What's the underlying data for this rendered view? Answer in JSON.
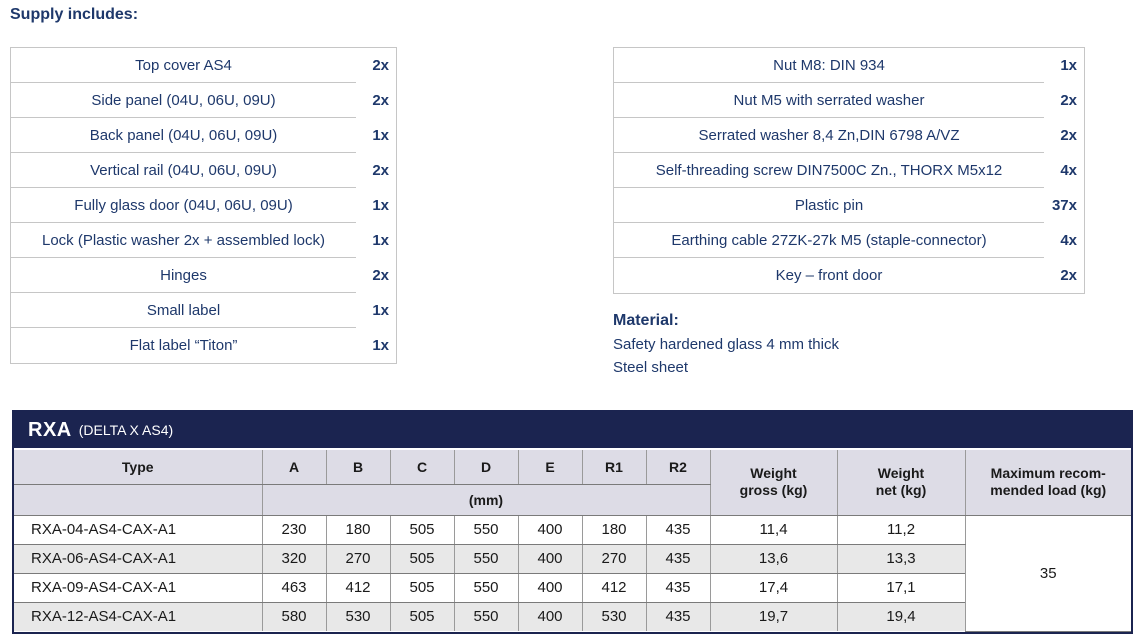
{
  "page": {
    "heading": "Supply includes:"
  },
  "supply_left": {
    "rows": [
      {
        "item": "Top cover AS4",
        "qty": "2x"
      },
      {
        "item": "Side panel (04U, 06U, 09U)",
        "qty": "2x"
      },
      {
        "item": "Back panel (04U, 06U, 09U)",
        "qty": "1x"
      },
      {
        "item": "Vertical rail (04U, 06U, 09U)",
        "qty": "2x"
      },
      {
        "item": "Fully glass door (04U, 06U, 09U)",
        "qty": "1x"
      },
      {
        "item": "Lock (Plastic washer 2x + assembled lock)",
        "qty": "1x"
      },
      {
        "item": "Hinges",
        "qty": "2x"
      },
      {
        "item": "Small label",
        "qty": "1x"
      },
      {
        "item": "Flat label “Titon”",
        "qty": "1x"
      }
    ]
  },
  "supply_right": {
    "rows": [
      {
        "item": "Nut M8: DIN 934",
        "qty": "1x"
      },
      {
        "item": "Nut M5 with serrated washer",
        "qty": "2x"
      },
      {
        "item": "Serrated washer 8,4 Zn,DIN 6798 A/VZ",
        "qty": "2x"
      },
      {
        "item": "Self-threading screw DIN7500C Zn., THORX M5x12",
        "qty": "4x"
      },
      {
        "item": "Plastic pin",
        "qty": "37x"
      },
      {
        "item": "Earthing cable 27ZK-27k M5 (staple-connector)",
        "qty": "4x"
      },
      {
        "item": "Key – front door",
        "qty": "2x"
      }
    ]
  },
  "material": {
    "heading": "Material:",
    "lines": [
      "Safety hardened glass 4 mm thick",
      "Steel sheet"
    ]
  },
  "spec_table": {
    "title": "RXA",
    "subtitle": "(DELTA X AS4)",
    "type_header": "Type",
    "dim_headers": [
      "A",
      "B",
      "C",
      "D",
      "E",
      "R1",
      "R2"
    ],
    "unit_label": "(mm)",
    "weight_gross_header": [
      "Weight",
      "gross (kg)"
    ],
    "weight_net_header": [
      "Weight",
      "net (kg)"
    ],
    "max_load_header": [
      "Maximum recom-",
      "mended load (kg)"
    ],
    "max_load_value": "35",
    "rows": [
      {
        "type": "RXA-04-AS4-CAX-A1",
        "a": "230",
        "b": "180",
        "c": "505",
        "d": "550",
        "e": "400",
        "r1": "180",
        "r2": "435",
        "gross": "11,4",
        "net": "11,2"
      },
      {
        "type": "RXA-06-AS4-CAX-A1",
        "a": "320",
        "b": "270",
        "c": "505",
        "d": "550",
        "e": "400",
        "r1": "270",
        "r2": "435",
        "gross": "13,6",
        "net": "13,3"
      },
      {
        "type": "RXA-09-AS4-CAX-A1",
        "a": "463",
        "b": "412",
        "c": "505",
        "d": "550",
        "e": "400",
        "r1": "412",
        "r2": "435",
        "gross": "17,4",
        "net": "17,1"
      },
      {
        "type": "RXA-12-AS4-CAX-A1",
        "a": "580",
        "b": "530",
        "c": "505",
        "d": "550",
        "e": "400",
        "r1": "530",
        "r2": "435",
        "gross": "19,7",
        "net": "19,4"
      }
    ]
  },
  "colors": {
    "navy_bar": "#1b2450",
    "navy_text": "#1e386b",
    "header_lavender": "#dddce6",
    "alt_row_gray": "#e8e8e8"
  }
}
